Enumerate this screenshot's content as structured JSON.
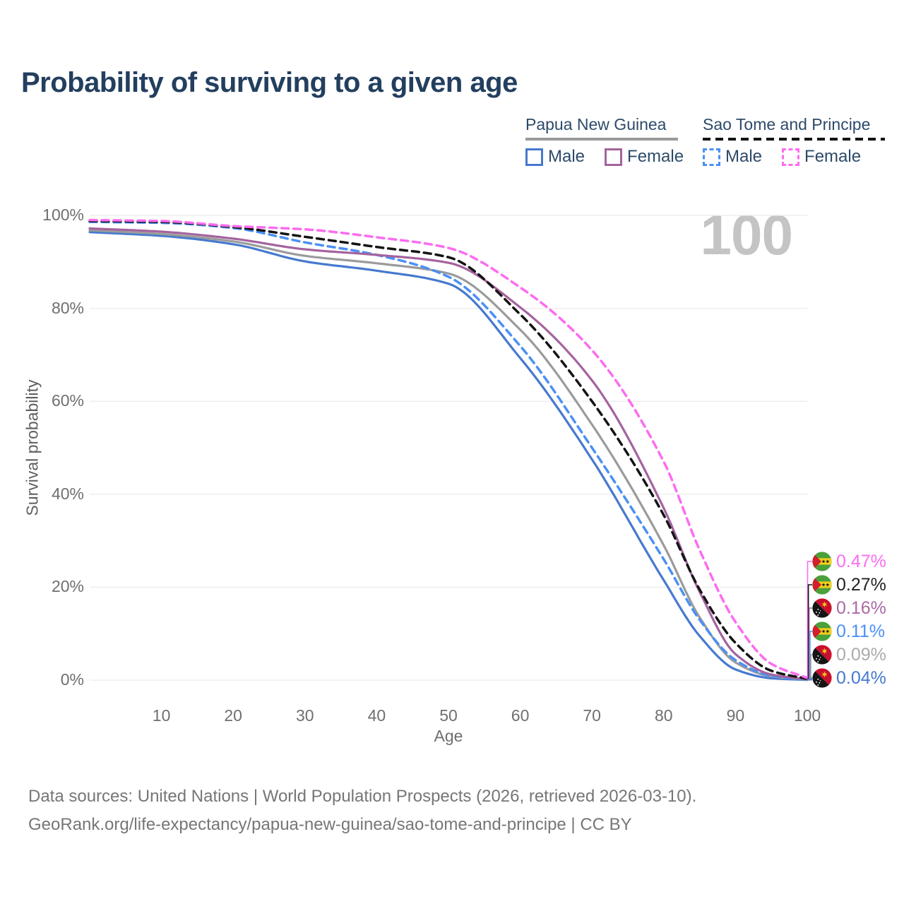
{
  "title": "Probability of surviving to a given age",
  "watermark": "100",
  "colors": {
    "title": "#233f5f",
    "axis_text": "#6f6f6f",
    "grid": "#ececec",
    "watermark": "#c4c4c4",
    "png_male": "#4679cf",
    "png_female": "#a4639e",
    "png_both": "#9b9b9b",
    "st_male": "#4b90f5",
    "st_female": "#fc6cf0",
    "st_both": "#141414"
  },
  "legend": {
    "groups": [
      {
        "title": "Papua New Guinea",
        "underline_style": "solid",
        "underline_color": "#9a9a9a",
        "items": [
          {
            "label": "Male",
            "swatch_color": "#4679cf",
            "dashed": false
          },
          {
            "label": "Female",
            "swatch_color": "#a4639e",
            "dashed": false
          }
        ]
      },
      {
        "title": "Sao Tome and Principe",
        "underline_style": "dashed",
        "underline_color": "#141414",
        "items": [
          {
            "label": "Male",
            "swatch_color": "#4b90f5",
            "dashed": true
          },
          {
            "label": "Female",
            "swatch_color": "#fc6cf0",
            "dashed": true
          }
        ]
      }
    ]
  },
  "chart_data": {
    "type": "line",
    "title": "Probability of surviving to a given age",
    "xlabel": "Age",
    "ylabel": "Survival probability",
    "xlim": [
      0,
      100
    ],
    "ylim": [
      0,
      100
    ],
    "grid": "horizontal",
    "x_ticks": [
      10,
      20,
      30,
      40,
      50,
      60,
      70,
      80,
      90,
      100
    ],
    "y_ticks": [
      {
        "label": "0%",
        "value": 0
      },
      {
        "label": "20%",
        "value": 20
      },
      {
        "label": "40%",
        "value": 40
      },
      {
        "label": "60%",
        "value": 60
      },
      {
        "label": "80%",
        "value": 80
      },
      {
        "label": "100%",
        "value": 100
      }
    ],
    "x": [
      0,
      10,
      20,
      30,
      40,
      50,
      60,
      70,
      80,
      85,
      90,
      95,
      100
    ],
    "series": [
      {
        "name": "Sao Tome and Principe Female",
        "color": "#fc6cf0",
        "dashed": true,
        "values": [
          99.0,
          98.8,
          97.7,
          97.0,
          95.3,
          93.0,
          84.5,
          71.0,
          47.0,
          28.0,
          12.5,
          3.5,
          0.47
        ]
      },
      {
        "name": "Sao Tome and Principe Both sexes",
        "color": "#141414",
        "dashed": true,
        "values": [
          98.8,
          98.6,
          97.5,
          95.4,
          93.2,
          91.0,
          78.7,
          60.0,
          35.5,
          19.5,
          8.0,
          2.0,
          0.27
        ]
      },
      {
        "name": "Papua New Guinea Female",
        "color": "#a4639e",
        "dashed": false,
        "values": [
          97.2,
          96.5,
          95.0,
          92.7,
          91.5,
          89.8,
          80.2,
          64.5,
          37.0,
          19.0,
          5.6,
          1.2,
          0.16
        ]
      },
      {
        "name": "Sao Tome and Principe Male",
        "color": "#4b90f5",
        "dashed": true,
        "values": [
          98.6,
          98.4,
          97.3,
          94.2,
          91.5,
          86.8,
          71.9,
          50.0,
          26.0,
          13.0,
          4.3,
          0.9,
          0.11
        ]
      },
      {
        "name": "Papua New Guinea Both sexes",
        "color": "#9b9b9b",
        "dashed": false,
        "values": [
          96.8,
          96.0,
          94.4,
          91.3,
          89.7,
          87.5,
          75.4,
          55.0,
          29.0,
          13.5,
          3.8,
          0.8,
          0.09
        ]
      },
      {
        "name": "Papua New Guinea Male",
        "color": "#4679cf",
        "dashed": false,
        "values": [
          96.4,
          95.6,
          93.8,
          90.1,
          88.1,
          85.3,
          69.3,
          47.5,
          21.5,
          9.5,
          2.3,
          0.4,
          0.04
        ]
      }
    ],
    "legend_position": "top-right"
  },
  "end_labels": [
    {
      "value": "0.47%",
      "color": "#fc6cf0",
      "flag": "sao-tome-and-principe"
    },
    {
      "value": "0.27%",
      "color": "#222222",
      "flag": "sao-tome-and-principe"
    },
    {
      "value": "0.16%",
      "color": "#ad68a5",
      "flag": "papua-new-guinea"
    },
    {
      "value": "0.11%",
      "color": "#4b90f5",
      "flag": "sao-tome-and-principe"
    },
    {
      "value": "0.09%",
      "color": "#ababab",
      "flag": "papua-new-guinea"
    },
    {
      "value": "0.04%",
      "color": "#4679cf",
      "flag": "papua-new-guinea"
    }
  ],
  "footer": {
    "line1": "Data sources: United Nations | World Population Prospects (2026, retrieved 2026-03-10).",
    "line2": "GeoRank.org/life-expectancy/papua-new-guinea/sao-tome-and-principe | CC BY"
  }
}
